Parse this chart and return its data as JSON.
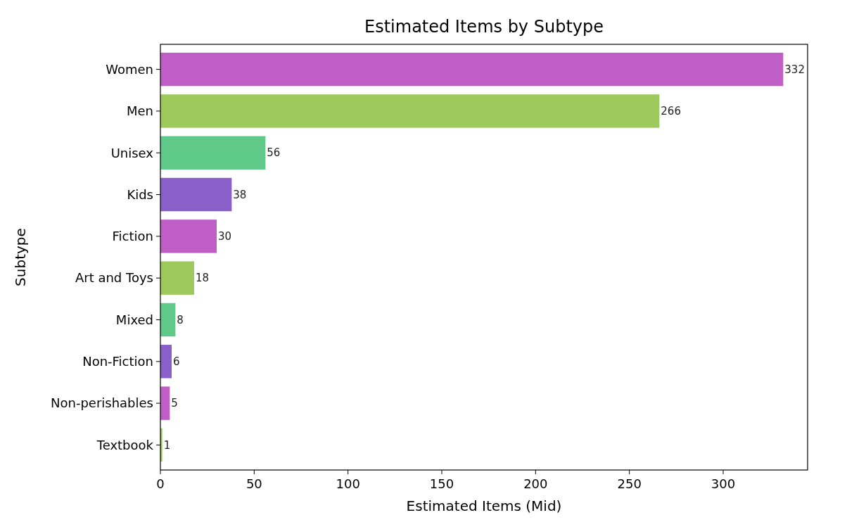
{
  "chart_data": {
    "type": "bar",
    "orientation": "horizontal",
    "title": "Estimated Items by Subtype",
    "xlabel": "Estimated Items (Mid)",
    "ylabel": "Subtype",
    "categories": [
      "Women",
      "Men",
      "Unisex",
      "Kids",
      "Fiction",
      "Art and Toys",
      "Mixed",
      "Non-Fiction",
      "Non-perishables",
      "Textbook"
    ],
    "values": [
      332,
      266,
      56,
      38,
      30,
      18,
      8,
      6,
      5,
      1
    ],
    "colors": [
      "#bf5fc6",
      "#9ec95d",
      "#5fc98a",
      "#8a5fc9",
      "#bf5fc6",
      "#9ec95d",
      "#5fc98a",
      "#8a5fc9",
      "#bf5fc6",
      "#9ec95d"
    ],
    "xlim": [
      0,
      345
    ],
    "xticks": [
      0,
      50,
      100,
      150,
      200,
      250,
      300
    ],
    "grid": false,
    "data_labels": true
  }
}
